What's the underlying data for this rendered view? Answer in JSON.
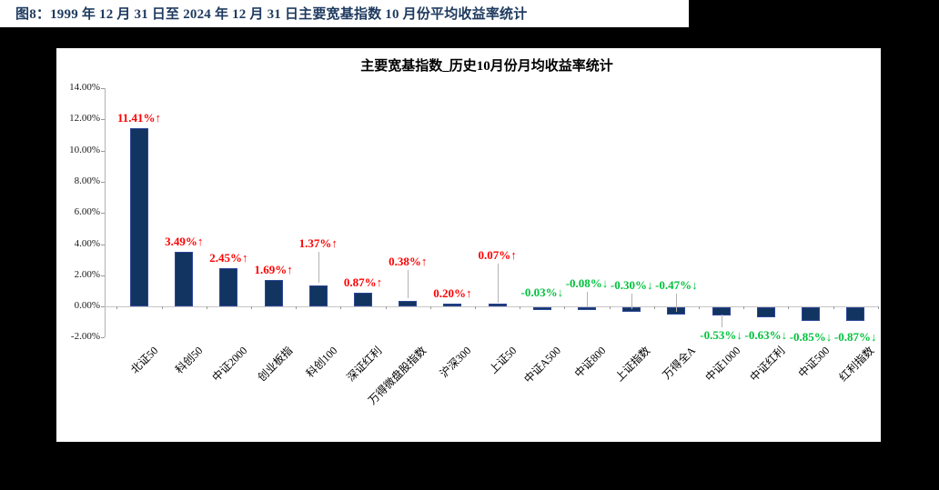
{
  "page": {
    "caption": "图8：1999 年 12 月 31 日至 2024 年 12 月 31 日主要宽基指数 10 月份平均收益率统计"
  },
  "chart_data": {
    "type": "bar",
    "title": "主要宽基指数_历史10月份月均收益率统计",
    "categories": [
      "北证50",
      "科创50",
      "中证2000",
      "创业板指",
      "科创100",
      "深证红利",
      "万得微盘股指数",
      "沪深300",
      "上证50",
      "中证A500",
      "中证800",
      "上证指数",
      "万得全A",
      "中证1000",
      "中证红利",
      "中证500",
      "红利指数"
    ],
    "values": [
      11.41,
      3.49,
      2.45,
      1.69,
      1.37,
      0.87,
      0.38,
      0.2,
      0.07,
      -0.03,
      -0.08,
      -0.3,
      -0.47,
      -0.53,
      -0.63,
      -0.85,
      -0.87
    ],
    "point_labels": [
      "11.41%↑",
      "3.49%↑",
      "2.45%↑",
      "1.69%↑",
      "1.37%↑",
      "0.87%↑",
      "0.38%↑",
      "0.20%↑",
      "0.07%↑",
      "-0.03%↓",
      "-0.08%↓",
      "-0.30%↓",
      "-0.47%↓",
      "-0.53%↓",
      "-0.63%↓",
      "-0.85%↓",
      "-0.87%↓"
    ],
    "y_ticks": [
      "14.00%",
      "12.00%",
      "10.00%",
      "8.00%",
      "6.00%",
      "4.00%",
      "2.00%",
      "0.00%",
      "-2.00%"
    ],
    "ylim": [
      -2,
      14
    ],
    "xlabel": "",
    "ylabel": "",
    "grid": false,
    "legend": false,
    "colors": {
      "caption_text": "#1e3a5f",
      "bar_fill": "#123461",
      "bar_border": "#2e4798",
      "label_positive": "#ff0000",
      "label_negative": "#00c23c",
      "axis_line": "#b0b0b0",
      "page_background": "#000000",
      "panel_background": "#ffffff"
    }
  }
}
